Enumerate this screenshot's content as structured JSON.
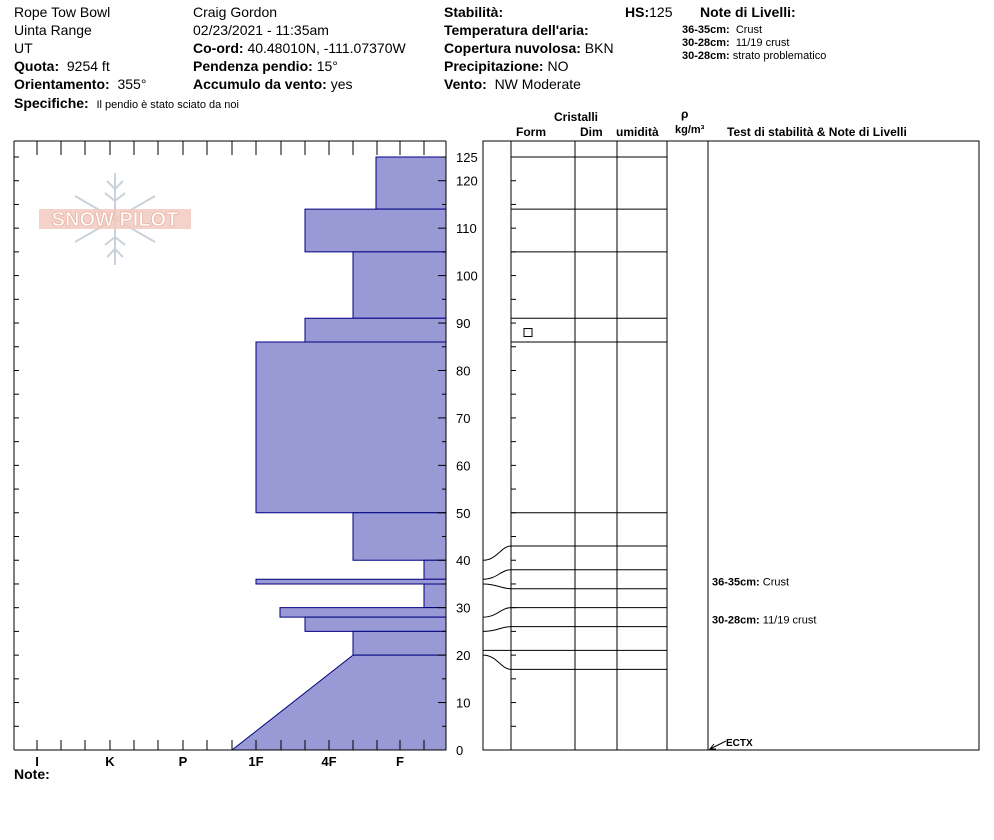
{
  "header": {
    "location": "Rope Tow Bowl",
    "range": "Uinta Range",
    "state": "UT",
    "elevation_label": "Quota:",
    "elevation_value": "9254 ft",
    "aspect_label": "Orientamento:",
    "aspect_value": "355°",
    "specifics_label": "Specifiche:",
    "specifics_value": "Il pendio è stato sciato da noi",
    "observer": "Craig Gordon",
    "datetime": "02/23/2021 - 11:35am",
    "coord_label": "Co-ord:",
    "coord_value": "40.48010N, -111.07370W",
    "slope_label": "Pendenza pendio:",
    "slope_value": "15°",
    "wind_loading_label": "Accumulo da vento:",
    "wind_loading_value": "yes",
    "stability_label": "Stabilità:",
    "air_temp_label": "Temperatura dell'aria:",
    "cloud_label": "Copertura nuvolosa:",
    "cloud_value": "BKN",
    "precip_label": "Precipitazione:",
    "precip_value": "NO",
    "wind_label": "Vento:",
    "wind_value": "NW Moderate",
    "hs_label": "HS:",
    "hs_value": "125",
    "layer_notes_title": "Note di Livelli:",
    "layer_notes": [
      {
        "range": "36-35cm:",
        "text": "Crust"
      },
      {
        "range": "30-28cm:",
        "text": "11/19 crust"
      },
      {
        "range": "30-28cm:",
        "text": "strato problematico"
      }
    ]
  },
  "columns": {
    "crystals": "Cristalli",
    "form": "Form",
    "dim": "Dim",
    "moisture": "umidità",
    "rho": "ρ",
    "density_unit": "kg/m³",
    "stability_notes": "Test di stabilità & Note di Livelli"
  },
  "notes_label": "Note:",
  "logo_text": "SNOW PILOT",
  "test_results": [
    {
      "label": "ECTX",
      "depth": 0
    }
  ],
  "right_notes": [
    {
      "range": "36-35cm:",
      "text": "Crust",
      "depth": 35.5
    },
    {
      "range": "30-28cm:",
      "text": "11/19 crust",
      "depth": 27.5
    }
  ],
  "colors": {
    "hardness_fill": "#9999d6",
    "hardness_stroke": "#000080",
    "grid": "#000000"
  },
  "chart_data": {
    "type": "hardness_profile",
    "y_axis": {
      "min": 0,
      "max": 125,
      "ticks": [
        0,
        10,
        20,
        30,
        40,
        50,
        60,
        70,
        80,
        90,
        100,
        110,
        120,
        125
      ],
      "units": "cm"
    },
    "x_axis": {
      "categories": [
        "I",
        "K",
        "P",
        "1F",
        "4F",
        "F"
      ],
      "direction": "right-to-left"
    },
    "layers": [
      {
        "top": 125,
        "bottom": 114,
        "hardness_top": "F+",
        "hardness_bottom": "F+"
      },
      {
        "top": 114,
        "bottom": 105,
        "hardness_top": "4F+",
        "hardness_bottom": "4F+"
      },
      {
        "top": 105,
        "bottom": 91,
        "hardness_top": "4F-",
        "hardness_bottom": "4F-"
      },
      {
        "top": 91,
        "bottom": 86,
        "hardness_top": "4F+",
        "hardness_bottom": "4F+"
      },
      {
        "top": 86,
        "bottom": 50,
        "hardness_top": "1F",
        "hardness_bottom": "1F"
      },
      {
        "top": 50,
        "bottom": 40,
        "hardness_top": "4F-",
        "hardness_bottom": "4F-"
      },
      {
        "top": 40,
        "bottom": 36,
        "hardness_top": "F-",
        "hardness_bottom": "F-"
      },
      {
        "top": 36,
        "bottom": 35,
        "hardness_top": "1F",
        "hardness_bottom": "1F"
      },
      {
        "top": 35,
        "bottom": 30,
        "hardness_top": "F-",
        "hardness_bottom": "F-"
      },
      {
        "top": 30,
        "bottom": 28,
        "hardness_top": "1F-",
        "hardness_bottom": "1F-"
      },
      {
        "top": 28,
        "bottom": 25,
        "hardness_top": "4F+",
        "hardness_bottom": "4F+"
      },
      {
        "top": 25,
        "bottom": 20,
        "hardness_top": "4F-",
        "hardness_bottom": "4F-"
      },
      {
        "top": 20,
        "bottom": 0,
        "hardness_top": "4F-",
        "hardness_bottom": "1F+"
      }
    ],
    "layer_boundaries": [
      125,
      114,
      105,
      91,
      86,
      50,
      43,
      38,
      34,
      30,
      26,
      21,
      17
    ],
    "grain_forms": [
      {
        "depth": 88,
        "symbol": "square"
      }
    ]
  }
}
